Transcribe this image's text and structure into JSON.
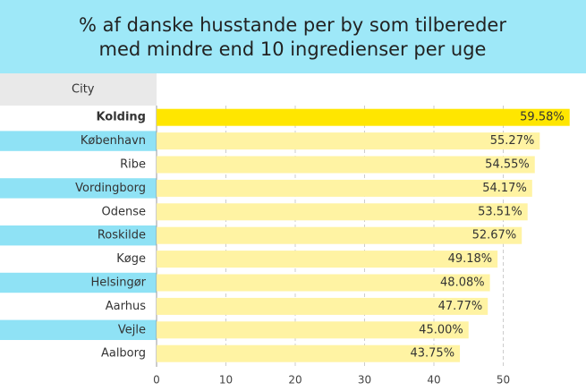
{
  "chart_data": {
    "type": "bar",
    "orientation": "horizontal",
    "title": [
      "% af danske husstande per by som tilbereder",
      "med mindre end 10 ingredienser per uge"
    ],
    "column_header": "City",
    "categories": [
      "Kolding",
      "København",
      "Ribe",
      "Vordingborg",
      "Odense",
      "Roskilde",
      "Køge",
      "Helsingør",
      "Aarhus",
      "Vejle",
      "Aalborg"
    ],
    "values": [
      59.58,
      55.27,
      54.55,
      54.17,
      53.51,
      52.67,
      49.18,
      48.08,
      47.77,
      45.0,
      43.75
    ],
    "value_labels": [
      "59.58%",
      "55.27%",
      "54.55%",
      "54.17%",
      "53.51%",
      "52.67%",
      "49.18%",
      "48.08%",
      "47.77%",
      "45.00%",
      "43.75%"
    ],
    "colors": [
      "#ffe600",
      "#fff3a3",
      "#fff3a3",
      "#fff3a3",
      "#fff3a3",
      "#fff3a3",
      "#fff3a3",
      "#fff3a3",
      "#fff3a3",
      "#fff3a3",
      "#fff3a3"
    ],
    "xlim": [
      0,
      60
    ],
    "xticks": [
      0,
      10,
      20,
      30,
      40,
      50
    ],
    "grid": true
  }
}
